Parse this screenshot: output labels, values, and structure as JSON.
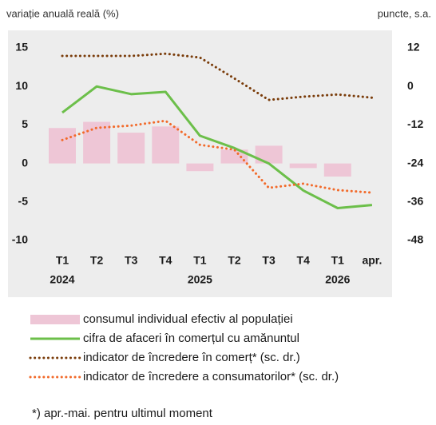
{
  "chart_data": {
    "type": "combo",
    "subtitle_left": "variație anuală reală (%)",
    "subtitle_right": "puncte, s.a.",
    "categories": [
      "T1",
      "T2",
      "T3",
      "T4",
      "T1",
      "T2",
      "T3",
      "T4",
      "T1",
      "apr."
    ],
    "x_sublabels": [
      "2024",
      null,
      null,
      null,
      "2025",
      null,
      null,
      null,
      "2026",
      null
    ],
    "ylim": [
      -10,
      15
    ],
    "yticks": [
      -10,
      -5,
      0,
      5,
      10,
      15
    ],
    "y2lim": [
      -48,
      12
    ],
    "y2ticks": [
      -48,
      -36,
      -24,
      -12,
      0,
      12
    ],
    "series": [
      {
        "name": "consumul individual efectiv al populației",
        "type": "bar",
        "color": "#eec6d6",
        "values": [
          4.6,
          5.4,
          4.0,
          4.8,
          -1.0,
          1.8,
          2.3,
          -0.6,
          -1.7,
          null
        ]
      },
      {
        "name": "cifra de afaceri în comerțul cu amănuntul",
        "type": "line",
        "style": "solid",
        "color": "#6cbf4a",
        "values": [
          6.6,
          10.0,
          9.0,
          9.3,
          3.6,
          2.0,
          0.0,
          -3.5,
          -5.8,
          -5.4
        ]
      },
      {
        "name": "indicator de încredere în comerț* (sc. dr.)",
        "type": "line",
        "style": "dotted",
        "axis": "y2",
        "color": "#7a3c0a",
        "values": [
          9.5,
          9.5,
          9.5,
          10.2,
          9.0,
          2.5,
          -4.2,
          -3.2,
          -2.5,
          -3.5
        ]
      },
      {
        "name": "indicator de încredere a consumatorilor* (sc. dr.)",
        "type": "line",
        "style": "dotted",
        "axis": "y2",
        "color": "#f26a2a",
        "values": [
          -16.7,
          -12.9,
          -12.2,
          -10.7,
          -18.2,
          -19.7,
          -31.6,
          -30.3,
          -32.3,
          -33.1
        ]
      }
    ],
    "footnote": "*) apr.-mai. pentru ultimul moment"
  }
}
